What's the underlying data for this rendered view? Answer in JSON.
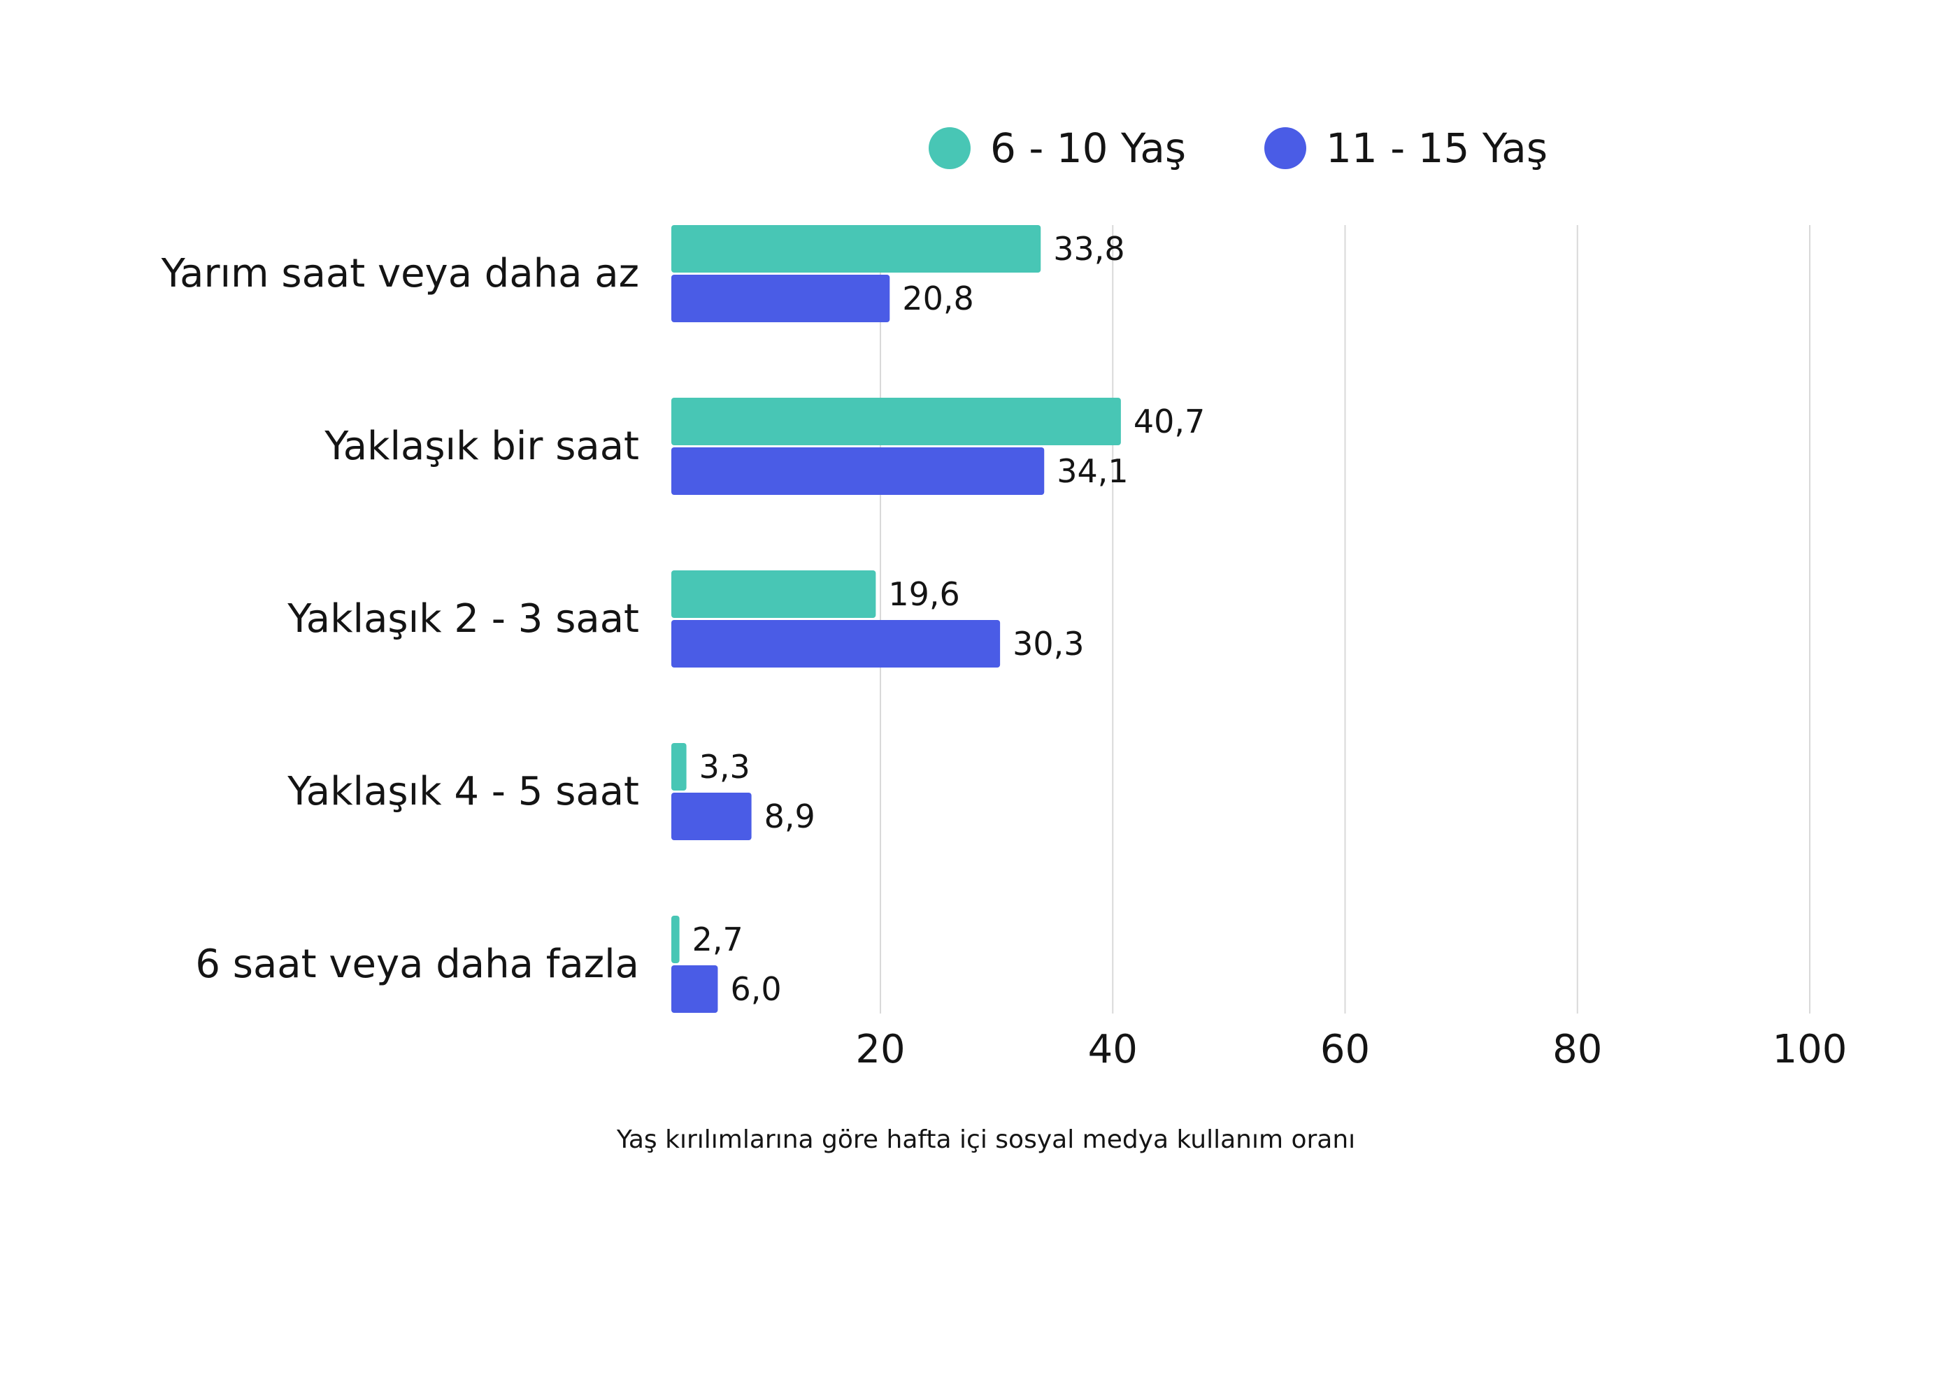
{
  "chart_data": {
    "type": "bar",
    "orientation": "horizontal",
    "categories": [
      "Yarım saat veya daha az",
      "Yaklaşık bir saat",
      "Yaklaşık 2 - 3 saat",
      "Yaklaşık 4 - 5 saat",
      "6 saat veya daha fazla"
    ],
    "series": [
      {
        "name": "6 - 10 Yaş",
        "color": "#48C6B5",
        "values": [
          33.8,
          40.7,
          19.6,
          3.3,
          2.7
        ],
        "labels": [
          "33,8",
          "40,7",
          "19,6",
          "3,3",
          "2,7"
        ]
      },
      {
        "name": "11 - 15 Yaş",
        "color": "#4A5CE6",
        "values": [
          20.8,
          34.1,
          30.3,
          8.9,
          6.0
        ],
        "labels": [
          "20,8",
          "34,1",
          "30,3",
          "8,9",
          "6,0"
        ]
      }
    ],
    "xlim": [
      2,
      100
    ],
    "xticks": [
      20,
      40,
      60,
      80,
      100
    ],
    "xtick_labels": [
      "20",
      "40",
      "60",
      "80",
      "100"
    ],
    "grid": true,
    "legend_position": "top",
    "caption": "Yaş kırılımlarına göre hafta içi sosyal medya kullanım oranı"
  }
}
